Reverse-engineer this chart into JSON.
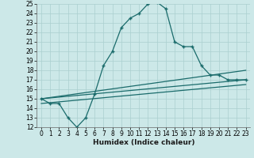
{
  "xlabel": "Humidex (Indice chaleur)",
  "bg_color": "#cce8e8",
  "grid_color": "#aacfcf",
  "line_color": "#1a6b6b",
  "xlim": [
    -0.5,
    23.5
  ],
  "ylim": [
    12,
    25
  ],
  "xticks": [
    0,
    1,
    2,
    3,
    4,
    5,
    6,
    7,
    8,
    9,
    10,
    11,
    12,
    13,
    14,
    15,
    16,
    17,
    18,
    19,
    20,
    21,
    22,
    23
  ],
  "yticks": [
    12,
    13,
    14,
    15,
    16,
    17,
    18,
    19,
    20,
    21,
    22,
    23,
    24,
    25
  ],
  "main_x": [
    0,
    1,
    2,
    3,
    4,
    5,
    6,
    7,
    8,
    9,
    10,
    11,
    12,
    13,
    14,
    15,
    16,
    17,
    18,
    19,
    20,
    21,
    22,
    23
  ],
  "main_y": [
    15.0,
    14.5,
    14.5,
    13.0,
    12.0,
    13.0,
    15.5,
    18.5,
    20.0,
    22.5,
    23.5,
    24.0,
    25.0,
    25.2,
    24.5,
    21.0,
    20.5,
    20.5,
    18.5,
    17.5,
    17.5,
    17.0,
    17.0,
    17.0
  ],
  "line2_x": [
    0,
    23
  ],
  "line2_y": [
    15.0,
    18.0
  ],
  "line3_x": [
    0,
    23
  ],
  "line3_y": [
    15.0,
    17.0
  ],
  "line4_x": [
    0,
    23
  ],
  "line4_y": [
    14.5,
    16.5
  ],
  "xlabel_fontsize": 6.5,
  "tick_fontsize": 5.5
}
